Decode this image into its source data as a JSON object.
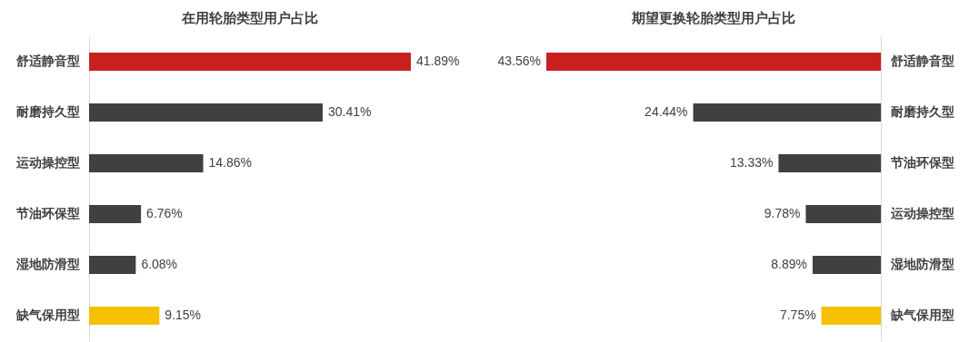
{
  "chart_data": [
    {
      "type": "bar",
      "orientation": "horizontal",
      "title": "在用轮胎类型用户占比",
      "categories": [
        "舒适静音型",
        "耐磨持久型",
        "运动操控型",
        "节油环保型",
        "湿地防滑型",
        "缺气保用型"
      ],
      "values": [
        41.89,
        30.41,
        14.86,
        6.76,
        6.08,
        9.15
      ],
      "value_labels": [
        "41.89%",
        "30.41%",
        "14.86%",
        "6.76%",
        "6.08%",
        "9.15%"
      ],
      "colors": [
        "#c8201e",
        "#404040",
        "#404040",
        "#404040",
        "#404040",
        "#f5c000"
      ]
    },
    {
      "type": "bar",
      "orientation": "horizontal",
      "title": "期望更换轮胎类型用户占比",
      "categories": [
        "舒适静音型",
        "耐磨持久型",
        "节油环保型",
        "运动操控型",
        "湿地防滑型",
        "缺气保用型"
      ],
      "values": [
        43.56,
        24.44,
        13.33,
        9.78,
        8.89,
        7.75
      ],
      "value_labels": [
        "43.56%",
        "24.44%",
        "13.33%",
        "9.78%",
        "8.89%",
        "7.75%"
      ],
      "colors": [
        "#c8201e",
        "#404040",
        "#404040",
        "#404040",
        "#404040",
        "#f5c000"
      ]
    }
  ]
}
